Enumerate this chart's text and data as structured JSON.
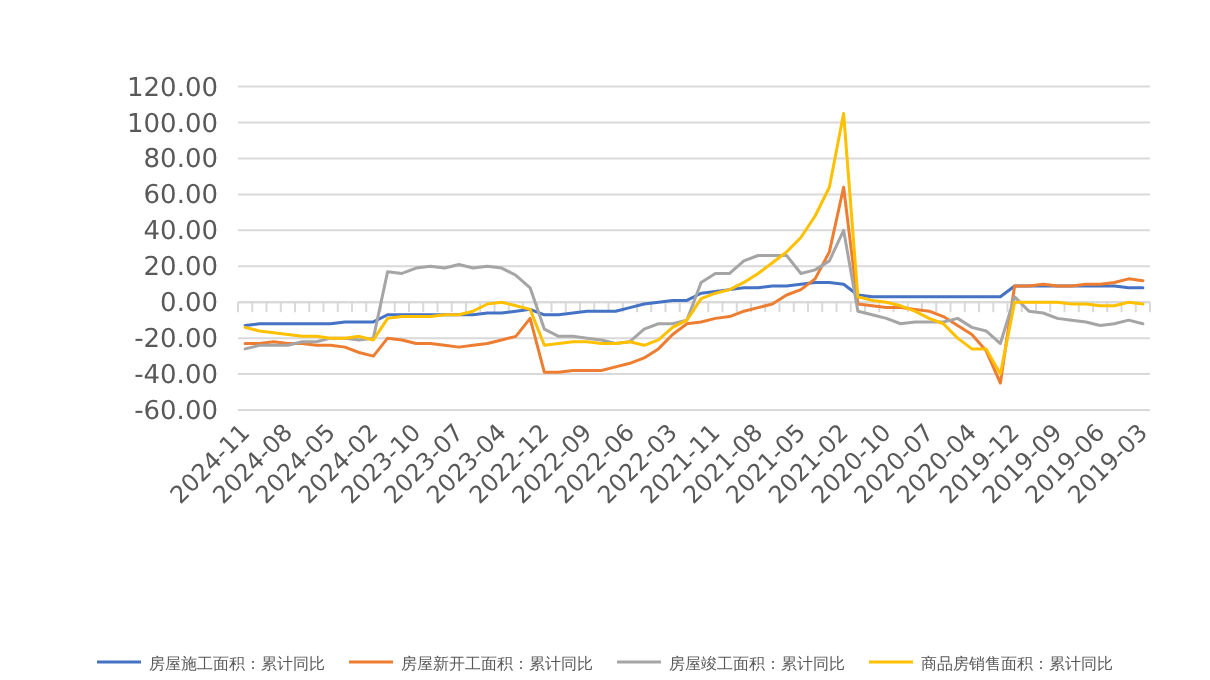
{
  "chart_data": {
    "type": "line",
    "categories": [
      "2024-11",
      null,
      null,
      "2024-08",
      null,
      null,
      "2024-05",
      null,
      null,
      "2024-02",
      null,
      null,
      "2023-10",
      null,
      null,
      "2023-07",
      null,
      null,
      "2023-04",
      null,
      null,
      "2022-12",
      null,
      null,
      "2022-09",
      null,
      null,
      "2022-06",
      null,
      null,
      "2022-03",
      null,
      null,
      "2021-11",
      null,
      null,
      "2021-08",
      null,
      null,
      "2021-05",
      null,
      null,
      "2021-02",
      null,
      null,
      "2020-10",
      null,
      null,
      "2020-07",
      null,
      null,
      "2020-04",
      null,
      null,
      "2019-12",
      null,
      null,
      "2019-09",
      null,
      null,
      "2019-06",
      null,
      null,
      "2019-03"
    ],
    "series": [
      {
        "name": "房屋施工面积：累计同比",
        "color": "#4472c4",
        "values": [
          -13,
          -12,
          -12,
          -12,
          -12,
          -12,
          -12,
          -11,
          -11,
          -11,
          -7,
          -7,
          -7,
          -7,
          -7,
          -7,
          -7,
          -6,
          -6,
          -5,
          -4,
          -7,
          -7,
          -6,
          -5,
          -5,
          -5,
          -3,
          -1,
          0,
          1,
          1,
          5,
          6,
          7,
          8,
          8,
          9,
          9,
          10,
          11,
          11,
          10,
          4,
          3,
          3,
          3,
          3,
          3,
          3,
          3,
          3,
          3,
          3,
          9,
          9,
          9,
          9,
          9,
          9,
          9,
          9,
          8,
          8
        ]
      },
      {
        "name": "房屋新开工面积：累计同比",
        "color": "#ed7d31",
        "values": [
          -23,
          -23,
          -22,
          -23,
          -23,
          -24,
          -24,
          -25,
          -28,
          -30,
          -20,
          -21,
          -23,
          -23,
          -24,
          -25,
          -24,
          -23,
          -21,
          -19,
          -9,
          -39,
          -39,
          -38,
          -38,
          -38,
          -36,
          -34,
          -31,
          -26,
          -18,
          -12,
          -11,
          -9,
          -8,
          -5,
          -3,
          -1,
          4,
          7,
          13,
          28,
          64,
          -1,
          -2,
          -3,
          -3,
          -4,
          -5,
          -8,
          -13,
          -18,
          -27,
          -45,
          9,
          9,
          10,
          9,
          9,
          10,
          10,
          11,
          13,
          12
        ]
      },
      {
        "name": "房屋竣工面积：累计同比",
        "color": "#a5a5a5",
        "values": [
          -26,
          -24,
          -24,
          -24,
          -22,
          -22,
          -20,
          -20,
          -21,
          -20,
          17,
          16,
          19,
          20,
          19,
          21,
          19,
          20,
          19,
          15,
          8,
          -15,
          -19,
          -19,
          -20,
          -21,
          -23,
          -22,
          -15,
          -12,
          -12,
          -10,
          11,
          16,
          16,
          23,
          26,
          26,
          26,
          16,
          18,
          23,
          40,
          -5,
          -7,
          -9,
          -12,
          -11,
          -11,
          -11,
          -9,
          -14,
          -16,
          -23,
          3,
          -5,
          -6,
          -9,
          -10,
          -11,
          -13,
          -12,
          -10,
          -12
        ]
      },
      {
        "name": "商品房销售面积：累计同比",
        "color": "#ffc000",
        "values": [
          -14,
          -16,
          -17,
          -18,
          -19,
          -19,
          -20,
          -20,
          -19,
          -21,
          -9,
          -8,
          -8,
          -8,
          -7,
          -7,
          -5,
          -1,
          0,
          -2,
          -4,
          -24,
          -23,
          -22,
          -22,
          -23,
          -23,
          -22,
          -24,
          -21,
          -14,
          -10,
          2,
          5,
          7,
          11,
          16,
          22,
          28,
          36,
          48,
          64,
          105,
          3,
          1,
          0,
          -2,
          -5,
          -9,
          -12,
          -20,
          -26,
          -26,
          -40,
          0,
          0,
          0,
          0,
          -1,
          -1,
          -2,
          -2,
          0,
          -1
        ]
      }
    ],
    "ylim": [
      -60,
      120
    ],
    "yticks": [
      {
        "value": -60,
        "label": "-60.00"
      },
      {
        "value": -40,
        "label": "-40.00"
      },
      {
        "value": -20,
        "label": "-20.00"
      },
      {
        "value": 0,
        "label": "0.00"
      },
      {
        "value": 20,
        "label": "20.00"
      },
      {
        "value": 40,
        "label": "40.00"
      },
      {
        "value": 60,
        "label": "60.00"
      },
      {
        "value": 80,
        "label": "80.00"
      },
      {
        "value": 100,
        "label": "100.00"
      },
      {
        "value": 120,
        "label": "120.00"
      }
    ],
    "grid": "y",
    "legend": "bottom",
    "marker": "none",
    "line_style": "solid"
  }
}
